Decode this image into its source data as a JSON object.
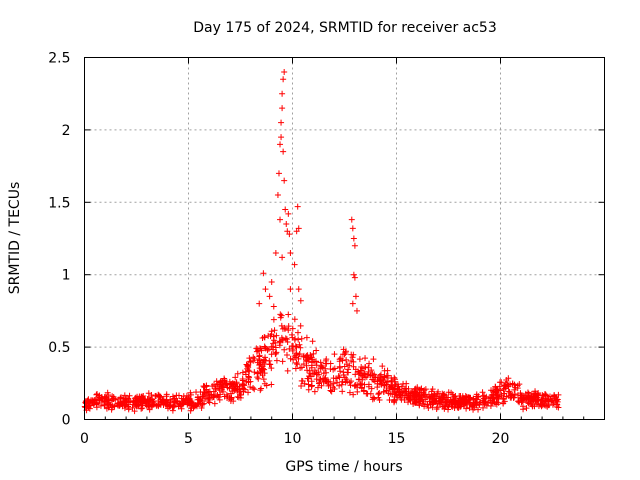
{
  "chart_data": {
    "type": "scatter",
    "title": "Day 175 of 2024, SRMTID for receiver ac53",
    "xlabel": "GPS time / hours",
    "ylabel": "SRMTID / TECUs",
    "xlim": [
      0,
      25
    ],
    "ylim": [
      0,
      2.5
    ],
    "x_ticks": [
      0,
      5,
      10,
      15,
      20
    ],
    "y_ticks": [
      0,
      0.5,
      1,
      1.5,
      2,
      2.5
    ],
    "x_tick_labels": [
      "0",
      "5",
      "10",
      "15",
      "20"
    ],
    "y_tick_labels": [
      "0",
      "0.5",
      "1",
      "1.5",
      "2",
      "2.5"
    ],
    "grid": true,
    "marker": "+",
    "series": [
      {
        "name": "SRMTID",
        "color": "#ff0000",
        "x_range": [
          0,
          22.8
        ],
        "baseline_profile": [
          [
            0,
            0.11
          ],
          [
            1,
            0.13
          ],
          [
            2,
            0.12
          ],
          [
            3,
            0.12
          ],
          [
            4,
            0.12
          ],
          [
            5,
            0.12
          ],
          [
            5.5,
            0.14
          ],
          [
            6,
            0.18
          ],
          [
            7,
            0.2
          ],
          [
            7.5,
            0.25
          ],
          [
            8,
            0.33
          ],
          [
            8.5,
            0.4
          ],
          [
            9,
            0.48
          ],
          [
            9.5,
            0.55
          ],
          [
            10,
            0.5
          ],
          [
            10.5,
            0.42
          ],
          [
            11,
            0.35
          ],
          [
            11.5,
            0.32
          ],
          [
            12,
            0.3
          ],
          [
            12.5,
            0.35
          ],
          [
            13,
            0.3
          ],
          [
            13.5,
            0.3
          ],
          [
            14,
            0.27
          ],
          [
            14.5,
            0.25
          ],
          [
            15,
            0.2
          ],
          [
            15.5,
            0.17
          ],
          [
            16,
            0.15
          ],
          [
            17,
            0.14
          ],
          [
            18,
            0.12
          ],
          [
            19,
            0.12
          ],
          [
            20,
            0.18
          ],
          [
            20.5,
            0.22
          ],
          [
            21,
            0.15
          ],
          [
            22,
            0.13
          ],
          [
            22.8,
            0.12
          ]
        ],
        "peak_points": [
          [
            8.6,
            1.01
          ],
          [
            8.7,
            0.9
          ],
          [
            8.9,
            0.85
          ],
          [
            9.0,
            0.95
          ],
          [
            9.2,
            1.15
          ],
          [
            9.3,
            1.55
          ],
          [
            9.35,
            1.7
          ],
          [
            9.4,
            1.9
          ],
          [
            9.45,
            2.05
          ],
          [
            9.5,
            2.25
          ],
          [
            9.55,
            2.35
          ],
          [
            9.6,
            2.4
          ],
          [
            9.5,
            2.15
          ],
          [
            9.45,
            1.95
          ],
          [
            9.55,
            1.85
          ],
          [
            9.6,
            1.65
          ],
          [
            9.65,
            1.45
          ],
          [
            9.7,
            1.35
          ],
          [
            9.75,
            1.3
          ],
          [
            9.8,
            1.42
          ],
          [
            9.85,
            1.28
          ],
          [
            9.9,
            1.15
          ],
          [
            9.4,
            1.38
          ],
          [
            9.5,
            1.12
          ],
          [
            10.1,
            1.07
          ],
          [
            10.2,
            1.3
          ],
          [
            10.25,
            1.47
          ],
          [
            10.3,
            1.32
          ],
          [
            10.3,
            0.9
          ],
          [
            10.4,
            0.82
          ],
          [
            12.85,
            1.38
          ],
          [
            12.9,
            1.32
          ],
          [
            12.95,
            1.25
          ],
          [
            13.0,
            1.2
          ],
          [
            12.95,
            1.0
          ],
          [
            13.0,
            0.98
          ],
          [
            13.05,
            0.85
          ],
          [
            12.9,
            0.8
          ],
          [
            13.1,
            0.75
          ],
          [
            8.4,
            0.8
          ],
          [
            9.1,
            0.78
          ],
          [
            9.9,
            0.9
          ]
        ]
      }
    ]
  }
}
